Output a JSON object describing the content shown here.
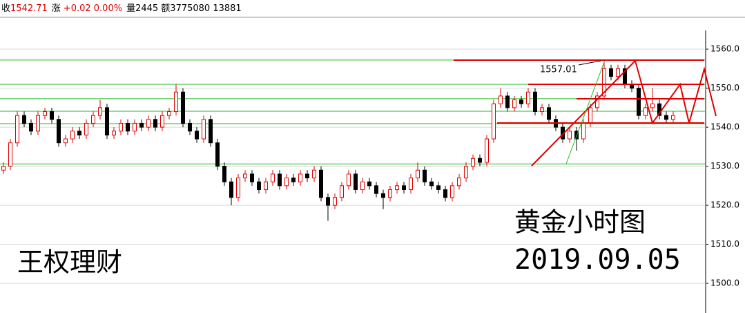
{
  "header": {
    "close_label": "收",
    "close": "1542.71",
    "change_label": "涨",
    "change": "+0.02 0.00%",
    "rest": "量2445 额3775080 13881"
  },
  "chart_data": {
    "type": "candlestick",
    "ylim": [
      1492.4,
      1564.8
    ],
    "yticks": [
      {
        "value": 1500,
        "label": "1500.0"
      },
      {
        "value": 1510,
        "label": "1510.0"
      },
      {
        "value": 1520,
        "label": "1520.0"
      },
      {
        "value": 1530,
        "label": "1530.0"
      },
      {
        "value": 1540,
        "label": "1540.0"
      },
      {
        "value": 1550,
        "label": "1550.0"
      },
      {
        "value": 1560,
        "label": "1560.0"
      }
    ],
    "grid": true,
    "up_color": "#e00000",
    "down_color": "#000000",
    "level_color": "#22bb22",
    "levels": [
      1557.2,
      1551.0,
      1547.3,
      1544.1,
      1540.9,
      1530.6
    ],
    "open": [
      1529,
      1530,
      1536,
      1543,
      1541,
      1539,
      1543,
      1544,
      1542,
      1536,
      1537,
      1539,
      1538,
      1541,
      1543,
      1545,
      1538,
      1539,
      1541,
      1539,
      1541,
      1540,
      1542,
      1540,
      1543,
      1544,
      1549,
      1541,
      1539,
      1537,
      1542,
      1536,
      1530,
      1526,
      1522,
      1527,
      1528,
      1526,
      1524,
      1526,
      1528,
      1525,
      1527,
      1526,
      1528,
      1527,
      1529,
      1522,
      1520,
      1522,
      1525,
      1528,
      1524,
      1526,
      1525,
      1523,
      1522,
      1524,
      1525,
      1524,
      1527,
      1529,
      1526,
      1525,
      1524,
      1522,
      1525,
      1527,
      1530,
      1532,
      1531,
      1537,
      1546,
      1548,
      1545,
      1547,
      1546,
      1549,
      1544,
      1545,
      1542,
      1540,
      1537,
      1539,
      1537,
      1541,
      1545,
      1548,
      1555,
      1553,
      1555,
      1551,
      1550,
      1543,
      1545,
      1546,
      1543,
      1542
    ],
    "close": [
      1530,
      1536,
      1543,
      1541,
      1539,
      1543,
      1544,
      1542,
      1536,
      1537,
      1539,
      1538,
      1541,
      1543,
      1545,
      1538,
      1539,
      1541,
      1539,
      1541,
      1540,
      1542,
      1540,
      1543,
      1544,
      1549,
      1541,
      1539,
      1537,
      1542,
      1536,
      1530,
      1526,
      1522,
      1527,
      1528,
      1526,
      1524,
      1526,
      1528,
      1525,
      1527,
      1526,
      1528,
      1527,
      1529,
      1522,
      1520,
      1522,
      1525,
      1528,
      1524,
      1526,
      1525,
      1523,
      1522,
      1524,
      1525,
      1524,
      1527,
      1529,
      1526,
      1525,
      1524,
      1522,
      1525,
      1527,
      1530,
      1532,
      1531,
      1537,
      1546,
      1548,
      1545,
      1547,
      1546,
      1549,
      1544,
      1545,
      1542,
      1540,
      1537,
      1539,
      1537,
      1541,
      1545,
      1548,
      1555,
      1553,
      1555,
      1551,
      1550,
      1543,
      1545,
      1546,
      1543,
      1542,
      1543
    ],
    "high": [
      1531,
      1537,
      1544,
      1544,
      1542,
      1544,
      1545,
      1545,
      1543,
      1538,
      1540,
      1540,
      1542,
      1544,
      1547,
      1546,
      1540,
      1542,
      1542,
      1542,
      1542,
      1543,
      1543,
      1544,
      1545,
      1551,
      1550,
      1542,
      1540,
      1543,
      1543,
      1537,
      1531,
      1527,
      1528,
      1529,
      1529,
      1527,
      1527,
      1529,
      1529,
      1528,
      1528,
      1529,
      1529,
      1530,
      1530,
      1523,
      1523,
      1526,
      1529,
      1529,
      1527,
      1527,
      1526,
      1524,
      1525,
      1526,
      1526,
      1528,
      1531,
      1530,
      1527,
      1526,
      1525,
      1526,
      1528,
      1531,
      1533,
      1533,
      1538,
      1547,
      1550,
      1549,
      1548,
      1548,
      1550,
      1550,
      1546,
      1546,
      1543,
      1541,
      1540,
      1540,
      1542,
      1546,
      1549,
      1557,
      1556,
      1556,
      1556,
      1552,
      1551,
      1546,
      1550,
      1547,
      1544,
      1544
    ],
    "low": [
      1528,
      1529,
      1535,
      1540,
      1538,
      1538,
      1542,
      1541,
      1535,
      1535,
      1536,
      1537,
      1537,
      1540,
      1542,
      1537,
      1537,
      1538,
      1538,
      1538,
      1539,
      1539,
      1539,
      1539,
      1542,
      1543,
      1540,
      1538,
      1536,
      1536,
      1535,
      1529,
      1525,
      1520,
      1521,
      1526,
      1525,
      1523,
      1523,
      1525,
      1524,
      1524,
      1525,
      1525,
      1526,
      1526,
      1521,
      1516,
      1519,
      1521,
      1524,
      1523,
      1523,
      1524,
      1522,
      1519,
      1521,
      1523,
      1523,
      1523,
      1526,
      1525,
      1524,
      1523,
      1521,
      1521,
      1524,
      1526,
      1529,
      1530,
      1530,
      1536,
      1545,
      1544,
      1544,
      1545,
      1545,
      1543,
      1543,
      1541,
      1539,
      1536,
      1536,
      1534,
      1536,
      1540,
      1544,
      1547,
      1552,
      1552,
      1550,
      1549,
      1542,
      1542,
      1544,
      1542,
      1541,
      1541
    ],
    "annotations": [
      {
        "text": "1557.01"
      }
    ],
    "watermarks": {
      "title": "黄金小时图",
      "date": "2019.09.05",
      "brand": "王权理财"
    }
  }
}
